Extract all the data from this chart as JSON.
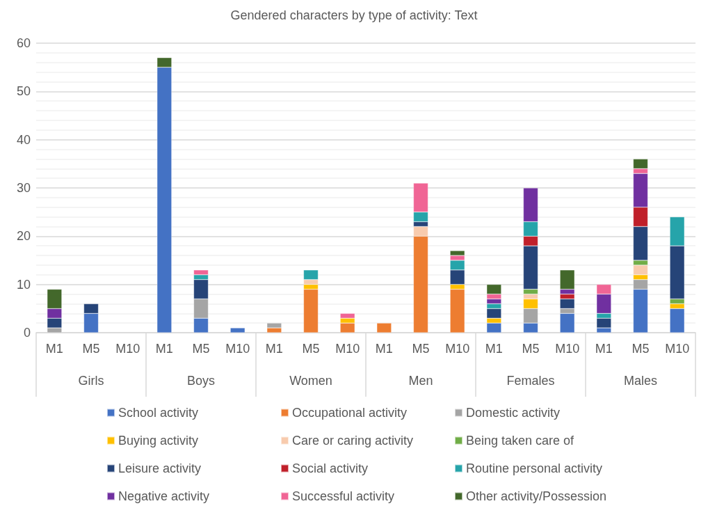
{
  "chart_data": {
    "type": "bar",
    "stacked": true,
    "title": "Gendered characters by type of activity: Text",
    "categories": [
      "M1",
      "M5",
      "M10",
      "M1",
      "M5",
      "M10",
      "M1",
      "M5",
      "M10",
      "M1",
      "M5",
      "M10",
      "M1",
      "M5",
      "M10",
      "M1",
      "M5",
      "M10"
    ],
    "annotations": [
      "Girls",
      "Boys",
      "Women",
      "Men",
      "Females",
      "Males"
    ],
    "ylim": [
      0,
      60
    ],
    "yticks": [
      0,
      10,
      20,
      30,
      40,
      50,
      60
    ],
    "grid": true,
    "legend": "bottom",
    "series": [
      {
        "name": "School activity",
        "color": "#4472c4",
        "values": [
          null,
          4,
          null,
          55,
          3,
          1,
          null,
          null,
          null,
          null,
          null,
          null,
          2,
          2,
          4,
          1,
          9,
          5
        ]
      },
      {
        "name": "Occupational activity",
        "color": "#ed7d31",
        "values": [
          null,
          null,
          null,
          null,
          null,
          null,
          1,
          9,
          2,
          2,
          20,
          9,
          null,
          null,
          null,
          null,
          null,
          null
        ]
      },
      {
        "name": "Domestic activity",
        "color": "#a5a5a5",
        "values": [
          1,
          null,
          null,
          null,
          4,
          null,
          1,
          null,
          null,
          null,
          null,
          null,
          null,
          3,
          1,
          null,
          2,
          null
        ]
      },
      {
        "name": "Buying activity",
        "color": "#ffc000",
        "values": [
          null,
          null,
          null,
          null,
          null,
          null,
          null,
          1,
          1,
          null,
          null,
          1,
          1,
          2,
          null,
          null,
          1,
          1
        ]
      },
      {
        "name": "Care or caring activity",
        "color": "#f8cbad",
        "values": [
          null,
          null,
          null,
          null,
          null,
          null,
          null,
          1,
          null,
          null,
          2,
          null,
          null,
          1,
          null,
          null,
          2,
          null
        ]
      },
      {
        "name": "Being taken care of",
        "color": "#70ad47",
        "values": [
          null,
          null,
          null,
          null,
          null,
          null,
          null,
          null,
          null,
          null,
          null,
          null,
          null,
          1,
          null,
          null,
          1,
          1
        ]
      },
      {
        "name": "Leisure activity",
        "color": "#264478",
        "values": [
          2,
          2,
          null,
          null,
          4,
          null,
          null,
          null,
          null,
          null,
          1,
          3,
          2,
          9,
          2,
          2,
          7,
          11
        ]
      },
      {
        "name": "Social activity",
        "color": "#c0202a",
        "values": [
          null,
          null,
          null,
          null,
          null,
          null,
          null,
          null,
          null,
          null,
          null,
          null,
          null,
          2,
          1,
          null,
          4,
          null
        ]
      },
      {
        "name": "Routine personal activity",
        "color": "#26a4aa",
        "values": [
          null,
          null,
          null,
          null,
          1,
          null,
          null,
          2,
          null,
          null,
          2,
          2,
          1,
          3,
          null,
          1,
          null,
          6
        ]
      },
      {
        "name": "Negative activity",
        "color": "#7030a0",
        "values": [
          2,
          null,
          null,
          null,
          null,
          null,
          null,
          null,
          null,
          null,
          null,
          null,
          1,
          7,
          1,
          4,
          7,
          null
        ]
      },
      {
        "name": "Successful activity",
        "color": "#f06595",
        "values": [
          null,
          null,
          null,
          null,
          1,
          null,
          null,
          null,
          1,
          null,
          6,
          1,
          1,
          null,
          null,
          2,
          1,
          null
        ]
      },
      {
        "name": "Other activity/Possession",
        "color": "#43682b",
        "values": [
          4,
          null,
          null,
          2,
          null,
          null,
          null,
          null,
          null,
          null,
          null,
          1,
          2,
          null,
          4,
          null,
          2,
          null
        ]
      }
    ]
  }
}
